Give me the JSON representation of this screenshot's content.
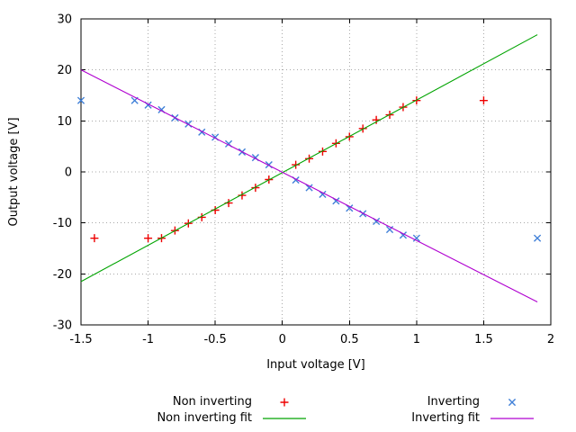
{
  "figure": {
    "background": "#ffffff",
    "axis_color": "#000000",
    "grid_color": "#a8a8a8",
    "text_color": "#000000"
  },
  "chart_data": {
    "type": "scatter",
    "title": "",
    "xlabel": "Input voltage [V]",
    "ylabel": "Output voltage [V]",
    "xlim": [
      -1.5,
      2
    ],
    "ylim": [
      -30,
      30
    ],
    "grid": true,
    "legend_position": "below-plot, two columns",
    "x_tick_values": [
      -1.5,
      -1,
      -0.5,
      0,
      0.5,
      1,
      1.5,
      2
    ],
    "x_tick_labels": [
      "-1.5",
      "-1",
      "-0.5",
      "0",
      "0.5",
      "1",
      "1.5",
      "2"
    ],
    "y_tick_values": [
      30,
      20,
      10,
      0,
      -10,
      -20,
      -30
    ],
    "y_tick_labels": [
      "30",
      "20",
      "10",
      "0",
      "-10",
      "-20",
      "-30"
    ],
    "series": [
      {
        "name": "Non inverting",
        "style": "points",
        "marker": "plus",
        "color": "#ee0000",
        "points": [
          [
            -1.4,
            -13
          ],
          [
            -1.0,
            -13
          ],
          [
            -0.9,
            -13
          ],
          [
            -0.8,
            -11.5
          ],
          [
            -0.7,
            -10.1
          ],
          [
            -0.6,
            -8.9
          ],
          [
            -0.5,
            -7.5
          ],
          [
            -0.4,
            -6.1
          ],
          [
            -0.3,
            -4.6
          ],
          [
            -0.2,
            -3.1
          ],
          [
            -0.1,
            -1.5
          ],
          [
            0.1,
            1.4
          ],
          [
            0.2,
            2.6
          ],
          [
            0.3,
            4.0
          ],
          [
            0.4,
            5.6
          ],
          [
            0.5,
            6.9
          ],
          [
            0.6,
            8.5
          ],
          [
            0.7,
            10.2
          ],
          [
            0.8,
            11.2
          ],
          [
            0.9,
            12.7
          ],
          [
            1.0,
            14.0
          ],
          [
            1.5,
            14.0
          ]
        ]
      },
      {
        "name": "Non inverting fit",
        "style": "line",
        "color": "#00a400",
        "points": [
          [
            -1.5,
            -21.5
          ],
          [
            1.9,
            26.9
          ]
        ]
      },
      {
        "name": "Inverting",
        "style": "points",
        "marker": "cross",
        "color": "#4080d8",
        "points": [
          [
            -1.5,
            14.0
          ],
          [
            -1.1,
            14.0
          ],
          [
            -1.0,
            13.1
          ],
          [
            -0.9,
            12.2
          ],
          [
            -0.8,
            10.6
          ],
          [
            -0.7,
            9.4
          ],
          [
            -0.6,
            7.8
          ],
          [
            -0.5,
            6.8
          ],
          [
            -0.4,
            5.5
          ],
          [
            -0.3,
            3.9
          ],
          [
            -0.2,
            2.8
          ],
          [
            -0.1,
            1.4
          ],
          [
            0.1,
            -1.6
          ],
          [
            0.2,
            -3.1
          ],
          [
            0.3,
            -4.4
          ],
          [
            0.4,
            -5.7
          ],
          [
            0.5,
            -7.1
          ],
          [
            0.6,
            -8.2
          ],
          [
            0.7,
            -9.7
          ],
          [
            0.8,
            -11.3
          ],
          [
            0.9,
            -12.4
          ],
          [
            1.0,
            -13.0
          ],
          [
            1.9,
            -13.0
          ]
        ]
      },
      {
        "name": "Inverting fit",
        "style": "line",
        "color": "#b000d0",
        "points": [
          [
            -1.5,
            20.0
          ],
          [
            1.9,
            -25.5
          ]
        ]
      }
    ]
  }
}
